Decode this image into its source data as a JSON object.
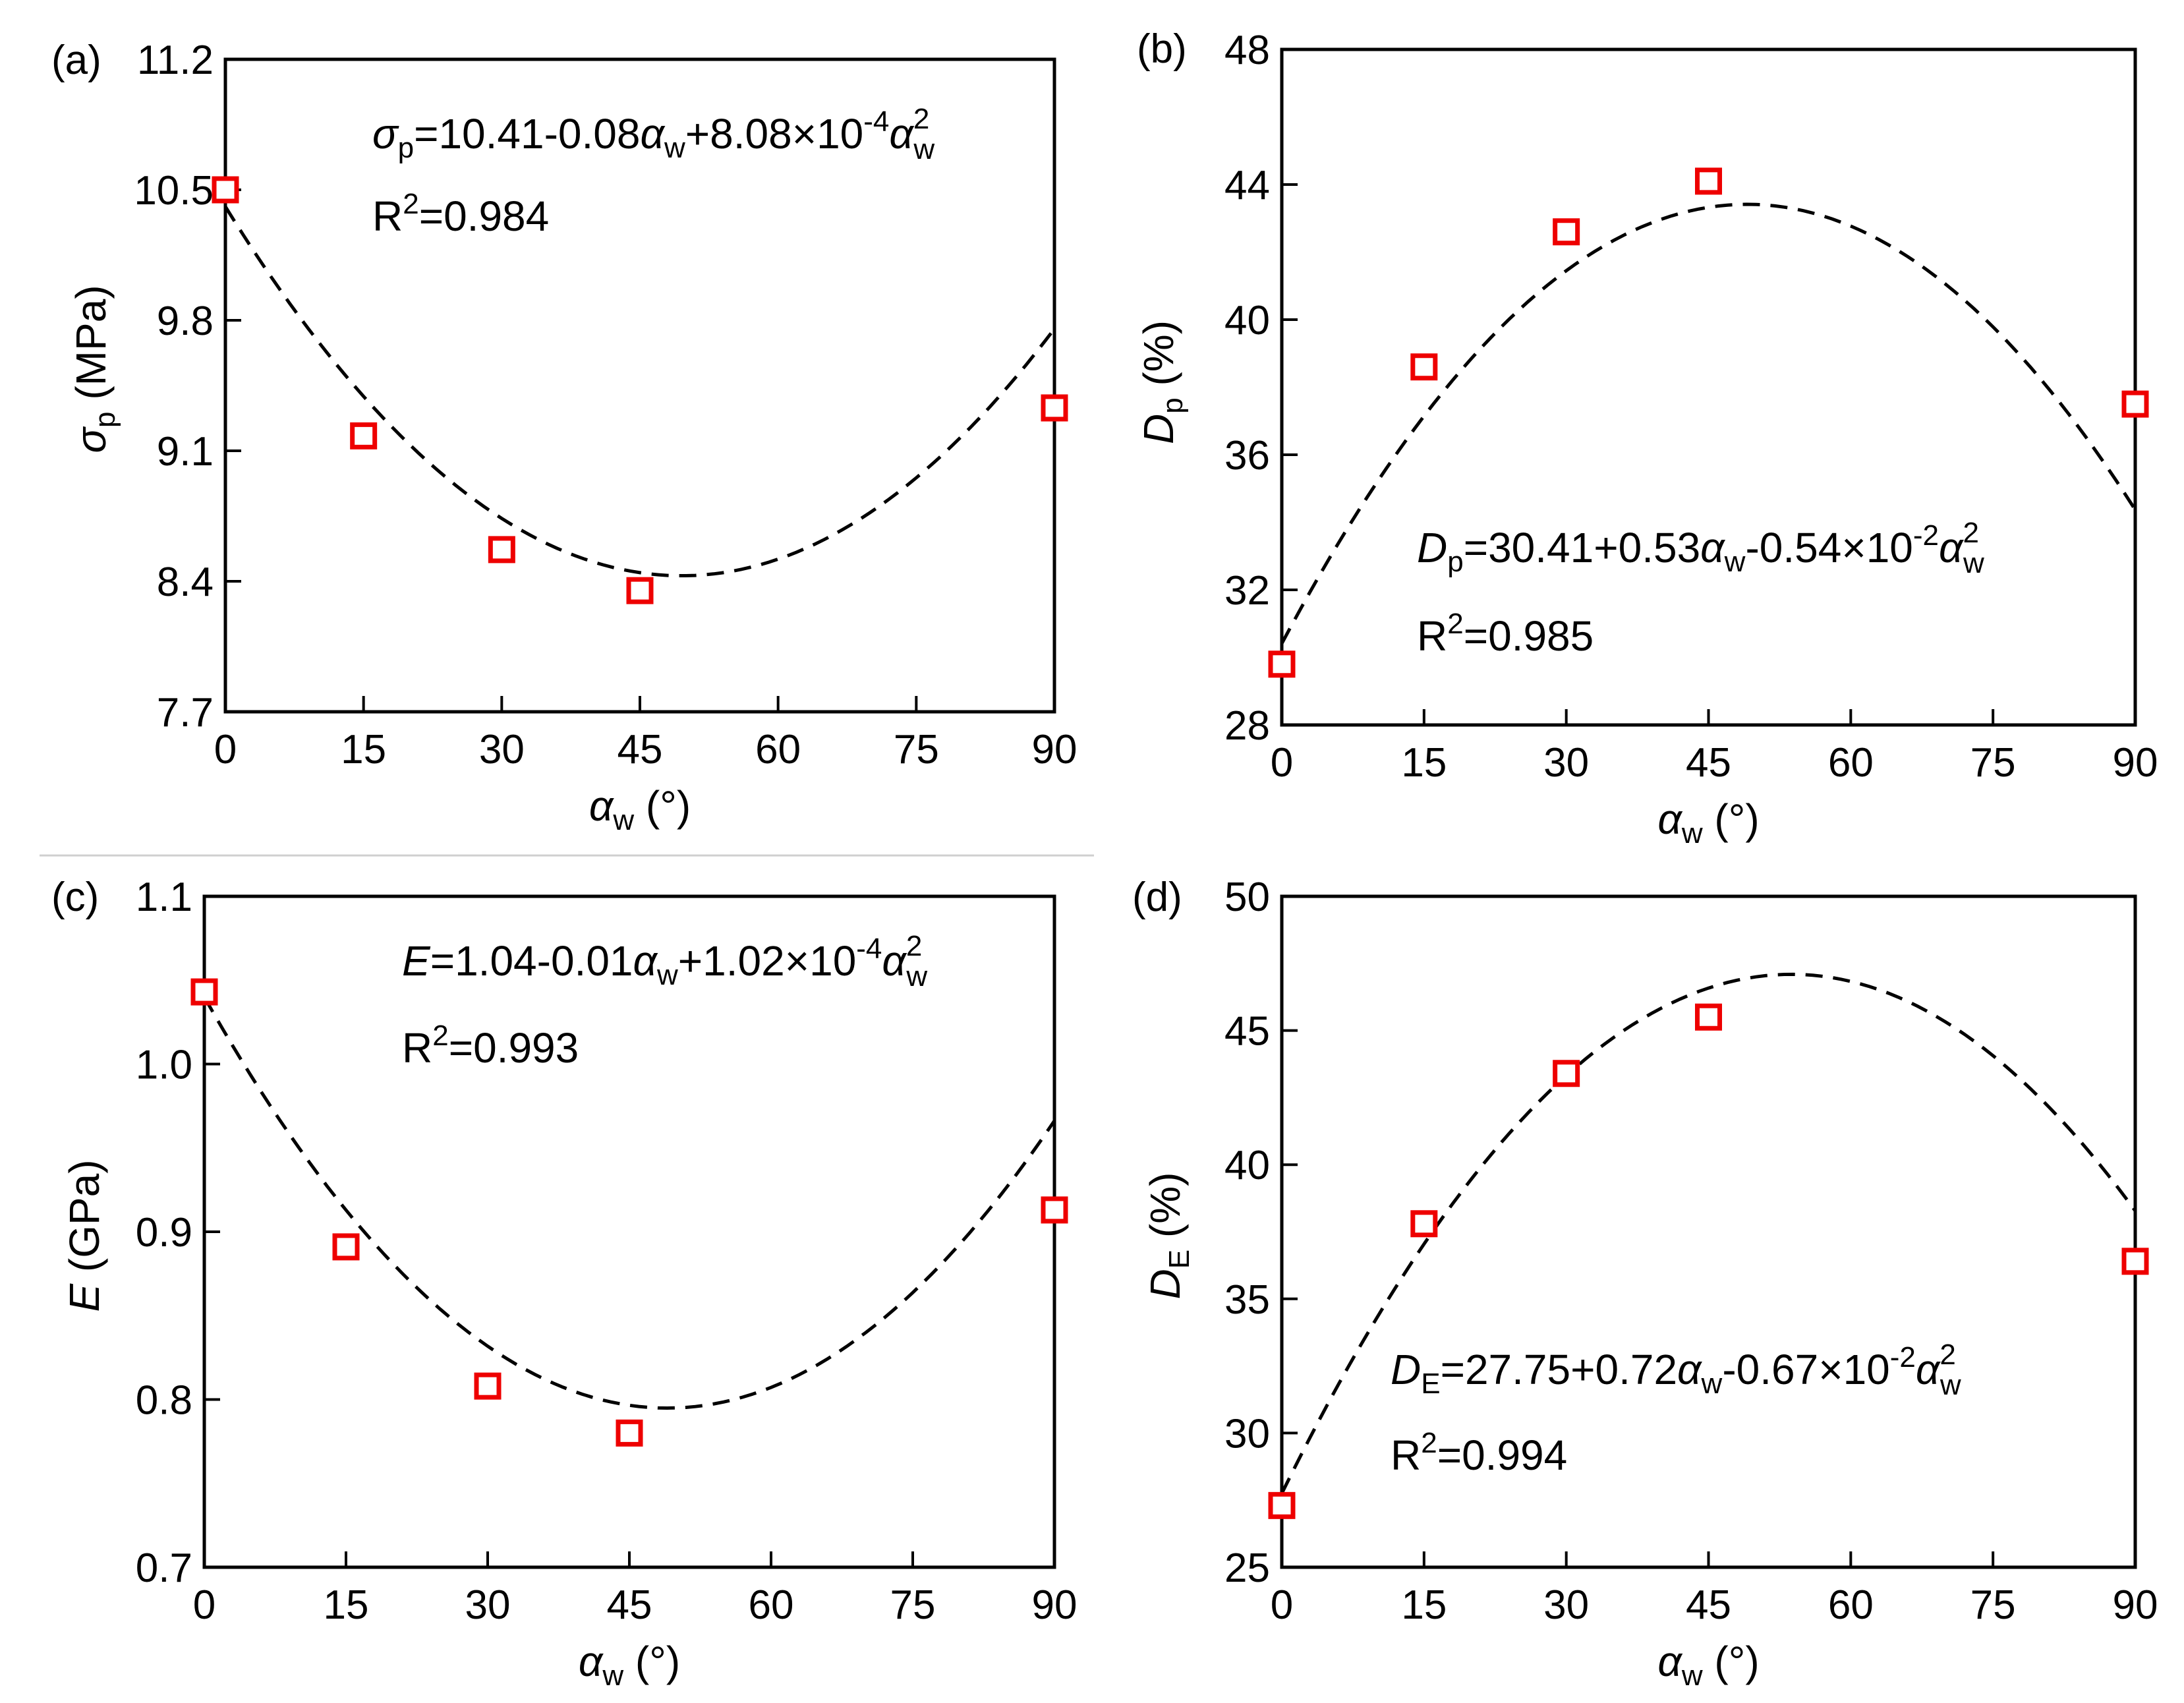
{
  "figure": {
    "background": "#ffffff",
    "marker_color": "#ee0000",
    "fit_color": "#000000"
  },
  "chart_data": [
    {
      "panel_label": "(a)",
      "type": "scatter",
      "x_label": {
        "sym": "α",
        "sub": "w",
        "unit": "(°)"
      },
      "y_label": {
        "sym": "σ",
        "sub": "p",
        "unit": "(MPa)"
      },
      "x_ticks": [
        "0",
        "15",
        "30",
        "45",
        "60",
        "75",
        "90"
      ],
      "x_tick_values": [
        0,
        15,
        30,
        45,
        60,
        75,
        90
      ],
      "y_ticks": [
        "7.7",
        "8.4",
        "9.1",
        "9.8",
        "10.5",
        "11.2"
      ],
      "y_tick_values": [
        7.7,
        8.4,
        9.1,
        9.8,
        10.5,
        11.2
      ],
      "xlim": [
        0,
        90
      ],
      "ylim": [
        7.7,
        11.2
      ],
      "x": [
        0,
        15,
        30,
        45,
        90
      ],
      "y": [
        10.5,
        9.18,
        8.57,
        8.35,
        9.33
      ],
      "fit": {
        "a": 10.41,
        "b": -0.08,
        "c": 0.000808
      },
      "equation": {
        "lhs": "σ",
        "lhs_sub": "p",
        "text": "=10.41-0.08",
        "var": "α",
        "var_sub": "w",
        "mid": "+8.08×10",
        "exp": "-4",
        "var2": "α",
        "var2_sup": "2",
        "var2_sub": "w"
      },
      "r2": {
        "base": "R",
        "sup": "2",
        "value": "=0.984"
      }
    },
    {
      "panel_label": "(b)",
      "type": "scatter",
      "x_label": {
        "sym": "α",
        "sub": "w",
        "unit": "(°)"
      },
      "y_label": {
        "sym": "D",
        "sub": "p",
        "unit": "(%)"
      },
      "x_ticks": [
        "0",
        "15",
        "30",
        "45",
        "60",
        "75",
        "90"
      ],
      "x_tick_values": [
        0,
        15,
        30,
        45,
        60,
        75,
        90
      ],
      "y_ticks": [
        "28",
        "32",
        "36",
        "40",
        "44",
        "48"
      ],
      "y_tick_values": [
        28,
        32,
        36,
        40,
        44,
        48
      ],
      "xlim": [
        0,
        90
      ],
      "ylim": [
        28,
        48
      ],
      "x": [
        0,
        15,
        30,
        45,
        90
      ],
      "y": [
        29.8,
        38.6,
        42.6,
        44.1,
        37.5
      ],
      "fit": {
        "a": 30.41,
        "b": 0.53,
        "c": -0.0054
      },
      "equation": {
        "lhs": "D",
        "lhs_sub": "p",
        "text": "=30.41+0.53",
        "var": "α",
        "var_sub": "w",
        "mid": "-0.54×10",
        "exp": "-2",
        "var2": "α",
        "var2_sup": "2",
        "var2_sub": "w"
      },
      "r2": {
        "base": "R",
        "sup": "2",
        "value": "=0.985"
      }
    },
    {
      "panel_label": "(c)",
      "type": "scatter",
      "x_label": {
        "sym": "α",
        "sub": "w",
        "unit": "(°)"
      },
      "y_label": {
        "sym": "E",
        "sub": "",
        "unit": "(GPa)"
      },
      "x_ticks": [
        "0",
        "15",
        "30",
        "45",
        "60",
        "75",
        "90"
      ],
      "x_tick_values": [
        0,
        15,
        30,
        45,
        60,
        75,
        90
      ],
      "y_ticks": [
        "0.7",
        "0.8",
        "0.9",
        "1.0",
        "1.1"
      ],
      "y_tick_values": [
        0.7,
        0.8,
        0.9,
        1.0,
        1.1
      ],
      "xlim": [
        0,
        90
      ],
      "ylim": [
        0.7,
        1.1
      ],
      "x": [
        0,
        15,
        30,
        45,
        90
      ],
      "y": [
        1.043,
        0.891,
        0.808,
        0.78,
        0.913
      ],
      "fit": {
        "a": 1.04,
        "b": -0.01,
        "c": 0.000102
      },
      "equation": {
        "lhs": "E",
        "lhs_sub": "",
        "text": "=1.04-0.01",
        "var": "α",
        "var_sub": "w",
        "mid": "+1.02×10",
        "exp": "-4",
        "var2": "α",
        "var2_sup": "2",
        "var2_sub": "w"
      },
      "r2": {
        "base": "R",
        "sup": "2",
        "value": "=0.993"
      }
    },
    {
      "panel_label": "(d)",
      "type": "scatter",
      "x_label": {
        "sym": "α",
        "sub": "w",
        "unit": "(°)"
      },
      "y_label": {
        "sym": "D",
        "sub": "E",
        "unit": "(%)"
      },
      "x_ticks": [
        "0",
        "15",
        "30",
        "45",
        "60",
        "75",
        "90"
      ],
      "x_tick_values": [
        0,
        15,
        30,
        45,
        60,
        75,
        90
      ],
      "y_ticks": [
        "25",
        "30",
        "35",
        "40",
        "45",
        "50"
      ],
      "y_tick_values": [
        25,
        30,
        35,
        40,
        45,
        50
      ],
      "xlim": [
        0,
        90
      ],
      "ylim": [
        25,
        50
      ],
      "x": [
        0,
        15,
        30,
        45,
        90
      ],
      "y": [
        27.3,
        37.8,
        43.4,
        45.5,
        36.4
      ],
      "fit": {
        "a": 27.75,
        "b": 0.72,
        "c": -0.0067
      },
      "equation": {
        "lhs": "D",
        "lhs_sub": "E",
        "text": "=27.75+0.72",
        "var": "α",
        "var_sub": "w",
        "mid": "-0.67×10",
        "exp": "-2",
        "var2": "α",
        "var2_sup": "2",
        "var2_sub": "w"
      },
      "r2": {
        "base": "R",
        "sup": "2",
        "value": "=0.994"
      }
    }
  ]
}
